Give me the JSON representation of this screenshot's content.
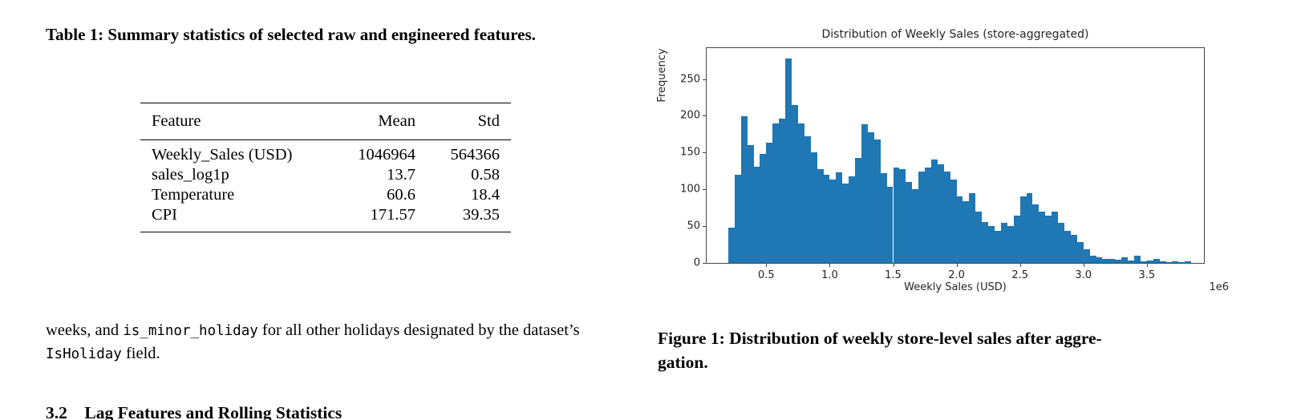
{
  "left": {
    "table_caption": "Table 1: Summary statistics of selected raw and engineered features.",
    "table": {
      "headers": [
        "Feature",
        "Mean",
        "Std"
      ],
      "rows": [
        [
          "Weekly_Sales (USD)",
          "1046964",
          "564366"
        ],
        [
          "sales_log1p",
          "13.7",
          "0.58"
        ],
        [
          "Temperature",
          "60.6",
          "18.4"
        ],
        [
          "CPI",
          "171.57",
          "39.35"
        ]
      ]
    },
    "paragraph": {
      "pre": "weeks, and ",
      "code1": "is_minor_holiday",
      "mid": " for all other holidays designated by the dataset’s ",
      "code2": "IsHoliday",
      "post": " field."
    },
    "clipped_heading": "3.2    Lag Features and Rolling Statistics"
  },
  "figure": {
    "caption_line1": "Figure 1: Distribution of weekly store-level sales after aggre-",
    "caption_line2": "gation."
  },
  "chart_data": {
    "type": "bar",
    "subtype": "histogram",
    "title": "Distribution of Weekly Sales (store-aggregated)",
    "xlabel": "Weekly Sales (USD)",
    "ylabel": "Frequency",
    "offset_text": "1e6",
    "bar_color": "#1f77b4",
    "bin_start": 0.2,
    "bin_width": 0.05,
    "x_unit": "1e6 USD",
    "xlim": [
      0.03,
      3.95
    ],
    "ylim": [
      0,
      292
    ],
    "xticks": [
      0.5,
      1.0,
      1.5,
      2.0,
      2.5,
      3.0,
      3.5
    ],
    "yticks": [
      0,
      50,
      100,
      150,
      200,
      250
    ],
    "values": [
      48,
      120,
      199,
      160,
      131,
      148,
      163,
      190,
      196,
      278,
      215,
      190,
      172,
      150,
      128,
      120,
      113,
      123,
      108,
      118,
      143,
      188,
      178,
      168,
      122,
      104,
      130,
      128,
      110,
      100,
      124,
      130,
      141,
      134,
      124,
      113,
      90,
      84,
      95,
      70,
      56,
      50,
      44,
      54,
      50,
      64,
      90,
      95,
      80,
      70,
      64,
      70,
      54,
      44,
      38,
      28,
      18,
      10,
      8,
      6,
      6,
      4,
      8,
      3,
      10,
      2,
      3,
      5,
      2,
      1,
      2,
      1,
      2
    ],
    "legend": null,
    "grid": false
  }
}
